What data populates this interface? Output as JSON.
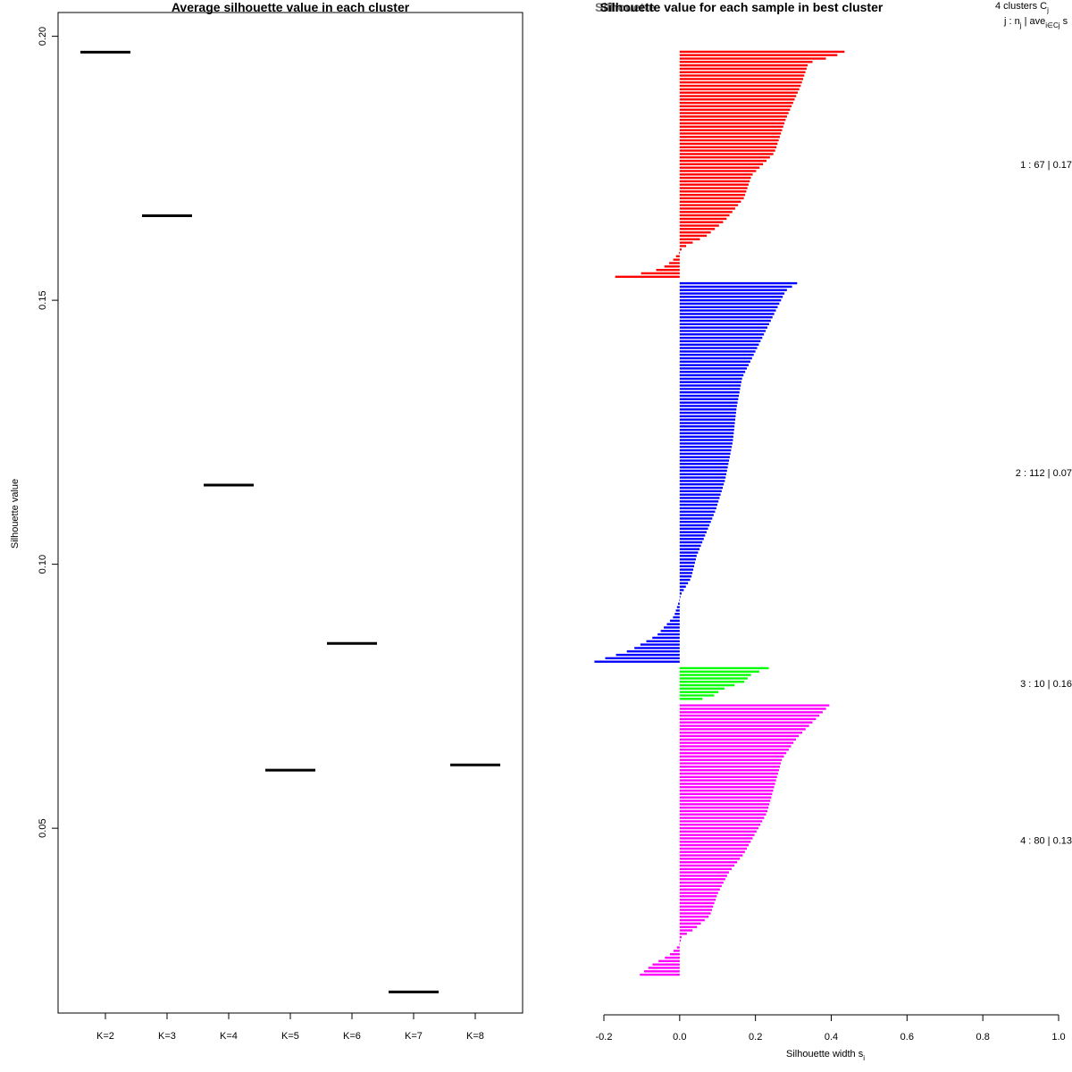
{
  "chart_data": [
    {
      "type": "scatter",
      "marker": "horizontal-segment",
      "title": "Average silhouette value in each cluster",
      "xlabel": "",
      "ylabel": "Silhouette value",
      "categories": [
        "K=2",
        "K=3",
        "K=4",
        "K=5",
        "K=6",
        "K=7",
        "K=8"
      ],
      "values": [
        0.197,
        0.166,
        0.115,
        0.061,
        0.085,
        0.019,
        0.062
      ],
      "ylim": [
        0.015,
        0.2045
      ],
      "yticks": [
        "0.05",
        "0.10",
        "0.15",
        "0.20"
      ],
      "ytick_values": [
        0.05,
        0.1,
        0.15,
        0.2
      ],
      "color": "#000000"
    },
    {
      "type": "bar",
      "orientation": "horizontal",
      "title": "Silhouette value for each sample in best cluster",
      "overlay_title": "Silhouette",
      "xlabel": "Silhouette width s",
      "xlabel_sub": "i",
      "xlim": [
        -0.2,
        1.0
      ],
      "xticks": [
        "-0.2",
        "0.0",
        "0.2",
        "0.4",
        "0.6",
        "0.8",
        "1.0"
      ],
      "xtick_values": [
        -0.2,
        0.0,
        0.2,
        0.4,
        0.6,
        0.8,
        1.0
      ],
      "header": {
        "line1": "4  clusters  C",
        "line1_sub": "j",
        "line2": "j :  n",
        "line2_sub": "j",
        "line2_mid": " | ave",
        "line2_mid_sub": "i∈Cj",
        "line2_end": "  s"
      },
      "clusters": [
        {
          "id": 1,
          "n": 67,
          "avg": 0.17,
          "label": "1 :  67  |  0.17",
          "color": "#FF0000",
          "profile": [
            [
              0.0,
              0.435
            ],
            [
              0.02,
              0.41
            ],
            [
              0.05,
              0.34
            ],
            [
              0.15,
              0.32
            ],
            [
              0.3,
              0.28
            ],
            [
              0.45,
              0.25
            ],
            [
              0.55,
              0.19
            ],
            [
              0.65,
              0.17
            ],
            [
              0.75,
              0.12
            ],
            [
              0.82,
              0.07
            ],
            [
              0.86,
              0.02
            ],
            [
              0.88,
              0.004
            ],
            [
              0.9,
              -0.005
            ],
            [
              0.93,
              -0.02
            ],
            [
              0.96,
              -0.045
            ],
            [
              0.98,
              -0.08
            ],
            [
              1.0,
              -0.17
            ]
          ]
        },
        {
          "id": 2,
          "n": 112,
          "avg": 0.07,
          "label": "2 :  112  |  0.07",
          "color": "#0000FF",
          "profile": [
            [
              0.0,
              0.31
            ],
            [
              0.02,
              0.28
            ],
            [
              0.1,
              0.24
            ],
            [
              0.18,
              0.2
            ],
            [
              0.25,
              0.165
            ],
            [
              0.33,
              0.15
            ],
            [
              0.42,
              0.14
            ],
            [
              0.52,
              0.12
            ],
            [
              0.6,
              0.095
            ],
            [
              0.66,
              0.07
            ],
            [
              0.72,
              0.045
            ],
            [
              0.78,
              0.03
            ],
            [
              0.82,
              0.005
            ],
            [
              0.84,
              -0.002
            ],
            [
              0.88,
              -0.015
            ],
            [
              0.93,
              -0.06
            ],
            [
              0.97,
              -0.13
            ],
            [
              1.0,
              -0.225
            ]
          ]
        },
        {
          "id": 3,
          "n": 10,
          "avg": 0.16,
          "label": "3 :  10  |  0.16",
          "color": "#00FF00",
          "profile": [
            [
              0.0,
              0.235
            ],
            [
              0.2,
              0.19
            ],
            [
              0.45,
              0.17
            ],
            [
              0.7,
              0.11
            ],
            [
              0.9,
              0.09
            ],
            [
              1.0,
              0.06
            ]
          ]
        },
        {
          "id": 4,
          "n": 80,
          "avg": 0.13,
          "label": "4 :  80  |  0.13",
          "color": "#FF00FF",
          "profile": [
            [
              0.0,
              0.395
            ],
            [
              0.05,
              0.36
            ],
            [
              0.12,
              0.31
            ],
            [
              0.2,
              0.27
            ],
            [
              0.3,
              0.25
            ],
            [
              0.4,
              0.23
            ],
            [
              0.45,
              0.21
            ],
            [
              0.55,
              0.17
            ],
            [
              0.62,
              0.13
            ],
            [
              0.7,
              0.1
            ],
            [
              0.78,
              0.08
            ],
            [
              0.83,
              0.04
            ],
            [
              0.86,
              0.005
            ],
            [
              0.88,
              0.002
            ],
            [
              0.9,
              -0.008
            ],
            [
              0.93,
              -0.03
            ],
            [
              0.96,
              -0.07
            ],
            [
              1.0,
              -0.105
            ]
          ]
        }
      ]
    }
  ]
}
